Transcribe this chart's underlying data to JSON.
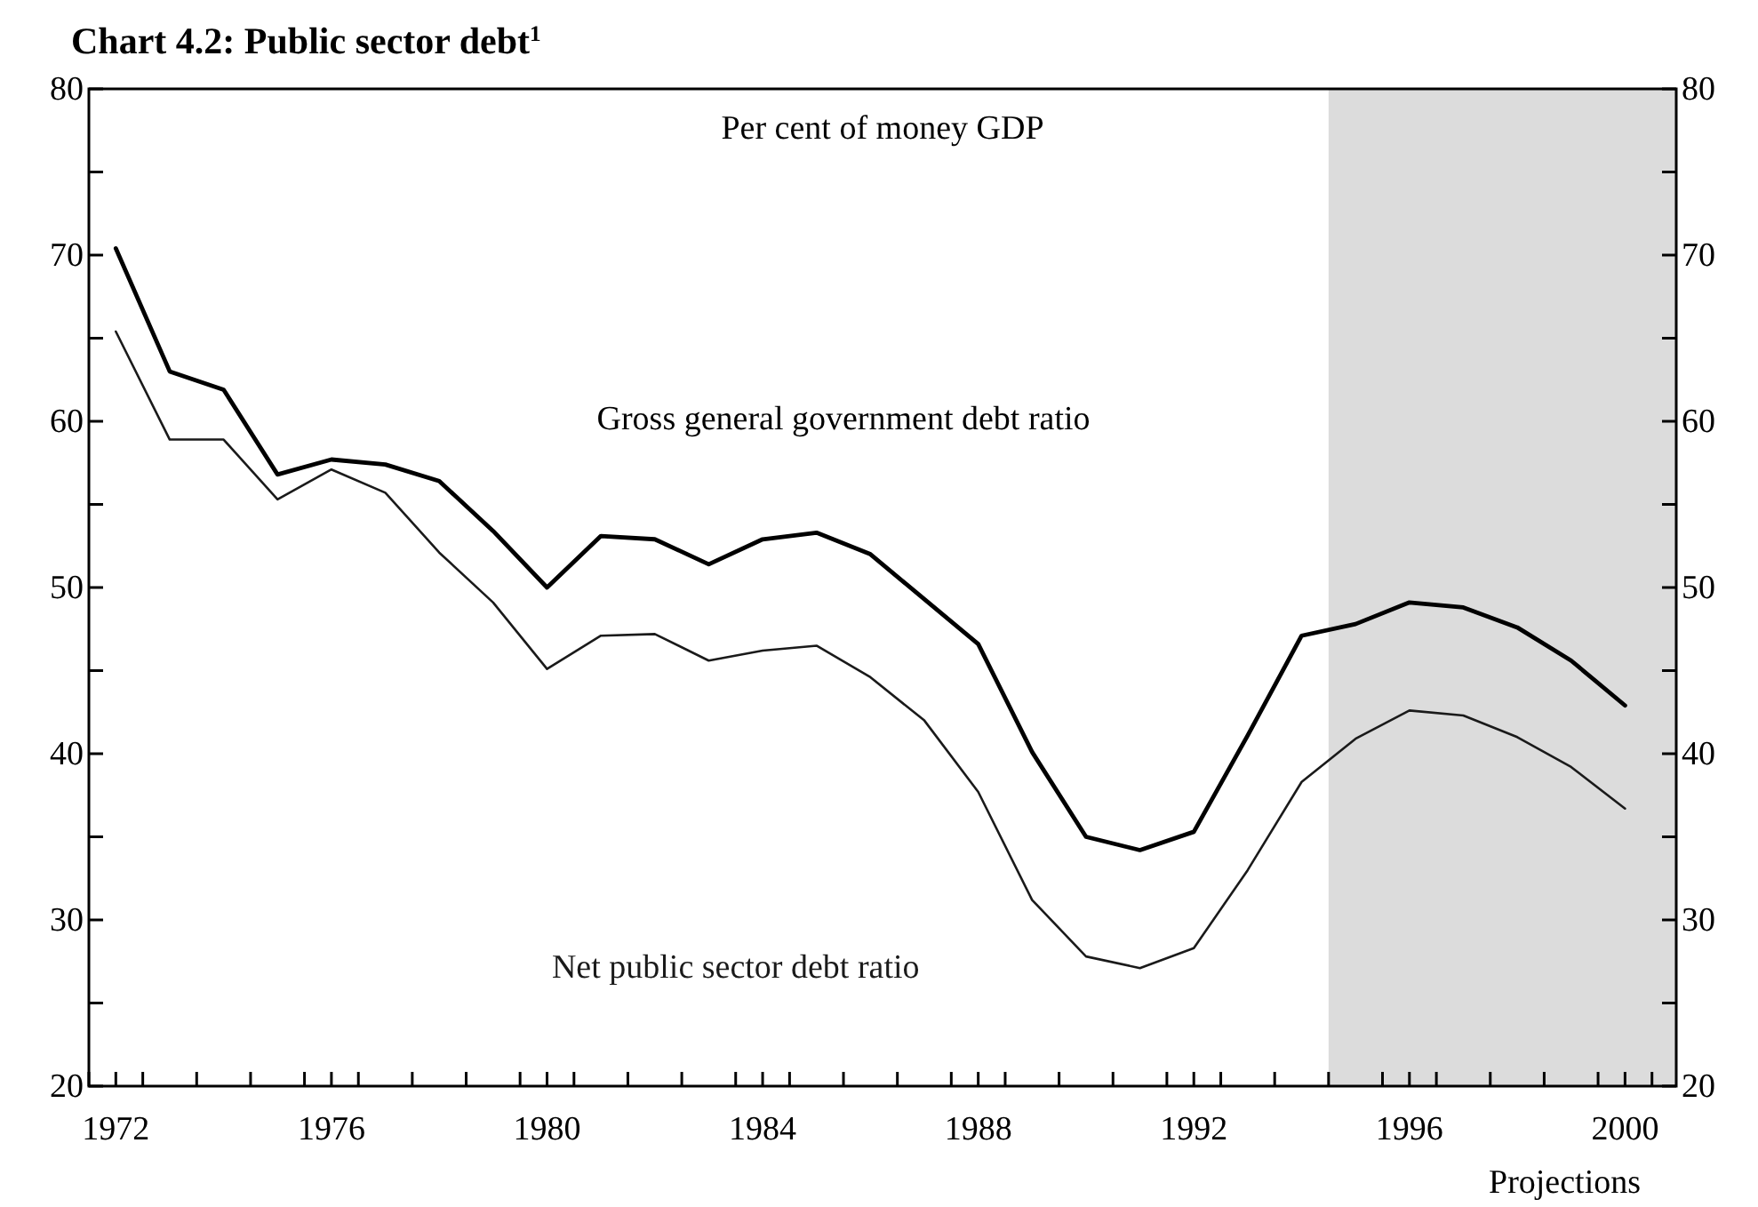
{
  "chart_data": {
    "type": "line",
    "title": "Chart 4.2: Public sector debt$^{1}$",
    "annotations": [
      "Per cent of money GDP"
    ],
    "x": [
      1972,
      1973,
      1974,
      1975,
      1976,
      1977,
      1978,
      1979,
      1980,
      1981,
      1982,
      1983,
      1984,
      1985,
      1986,
      1987,
      1988,
      1989,
      1990,
      1991,
      1992,
      1993,
      1994,
      1995,
      1996,
      1997,
      1998,
      1999,
      2000
    ],
    "series": [
      {
        "name": "Gross general government debt ratio",
        "color": "#000000",
        "values": [
          70.4,
          63.0,
          61.9,
          56.8,
          57.7,
          57.4,
          56.4,
          53.4,
          50.0,
          53.1,
          52.9,
          51.4,
          52.9,
          53.3,
          52.0,
          49.3,
          46.6,
          40.1,
          35.0,
          34.2,
          35.3,
          41.1,
          47.1,
          47.8,
          49.1,
          48.8,
          47.6,
          45.6,
          42.9
        ]
      },
      {
        "name": "Net public sector debt ratio",
        "color": "#1a1a1a",
        "values": [
          65.4,
          58.9,
          58.9,
          55.3,
          57.1,
          55.7,
          52.1,
          49.1,
          45.1,
          47.1,
          47.2,
          45.6,
          46.2,
          46.5,
          44.6,
          42.0,
          37.7,
          31.2,
          27.8,
          27.1,
          28.3,
          33.0,
          38.3,
          40.9,
          42.6,
          42.3,
          41.0,
          39.2,
          36.7
        ]
      }
    ],
    "xlim": [
      1971.5,
      2000.95
    ],
    "xticks": [
      {
        "value": 1971.5,
        "label": null
      },
      {
        "value": 1972,
        "label": "1972"
      },
      {
        "value": 1972.5,
        "label": null
      },
      {
        "value": 1973.5,
        "label": null
      },
      {
        "value": 1974.5,
        "label": null
      },
      {
        "value": 1975.5,
        "label": null
      },
      {
        "value": 1976,
        "label": "1976"
      },
      {
        "value": 1976.5,
        "label": null
      },
      {
        "value": 1977.5,
        "label": null
      },
      {
        "value": 1978.5,
        "label": null
      },
      {
        "value": 1979.5,
        "label": null
      },
      {
        "value": 1980,
        "label": "1980"
      },
      {
        "value": 1980.5,
        "label": null
      },
      {
        "value": 1981.5,
        "label": null
      },
      {
        "value": 1982.5,
        "label": null
      },
      {
        "value": 1983.5,
        "label": null
      },
      {
        "value": 1984,
        "label": "1984"
      },
      {
        "value": 1984.5,
        "label": null
      },
      {
        "value": 1985.5,
        "label": null
      },
      {
        "value": 1986.5,
        "label": null
      },
      {
        "value": 1987.5,
        "label": null
      },
      {
        "value": 1988,
        "label": "1988"
      },
      {
        "value": 1988.5,
        "label": null
      },
      {
        "value": 1989.5,
        "label": null
      },
      {
        "value": 1990.5,
        "label": null
      },
      {
        "value": 1991.5,
        "label": null
      },
      {
        "value": 1992,
        "label": "1992"
      },
      {
        "value": 1992.5,
        "label": null
      },
      {
        "value": 1993.5,
        "label": null
      },
      {
        "value": 1994.5,
        "label": null
      },
      {
        "value": 1995.5,
        "label": null
      },
      {
        "value": 1996,
        "label": "1996"
      },
      {
        "value": 1996.5,
        "label": null
      },
      {
        "value": 1997.5,
        "label": null
      },
      {
        "value": 1998.5,
        "label": null
      },
      {
        "value": 1999.5,
        "label": null
      },
      {
        "value": 2000,
        "label": "2000"
      },
      {
        "value": 2000.5,
        "label": null
      }
    ],
    "ylim": [
      20,
      80
    ],
    "yticks": [
      20,
      {
        "value": 25,
        "label": null
      },
      30,
      {
        "value": 35,
        "label": null
      },
      40,
      {
        "value": 45,
        "label": null
      },
      50,
      {
        "value": 55,
        "label": null
      },
      60,
      {
        "value": 65,
        "label": null
      },
      70,
      {
        "value": 75,
        "label": null
      },
      80
    ],
    "y2lim": [
      20,
      80
    ],
    "y2ticks": [
      20,
      {
        "value": 25,
        "label": null
      },
      30,
      {
        "value": 35,
        "label": null
      },
      40,
      {
        "value": 45,
        "label": null
      },
      50,
      {
        "value": 55,
        "label": null
      },
      60,
      {
        "value": 65,
        "label": null
      },
      70,
      {
        "value": 75,
        "label": null
      },
      80
    ],
    "bands": [
      {
        "axis": "x",
        "from": 1994.5,
        "to": 2000.95,
        "label": "Projections",
        "color": "#dcdcdc"
      }
    ],
    "grid": false,
    "marker": "none",
    "line_style": "solid"
  }
}
